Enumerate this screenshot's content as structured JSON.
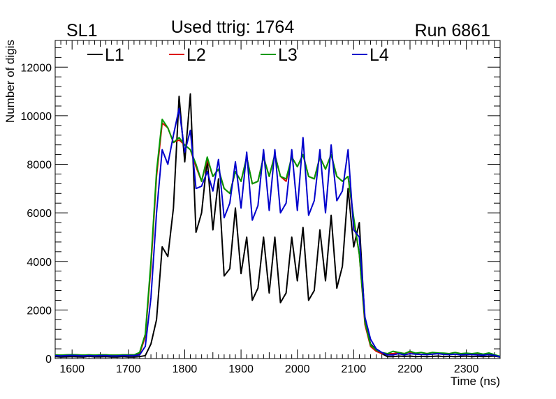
{
  "chart_data": {
    "type": "line",
    "title": "Used ttrig: 1764",
    "title_left": "SL1",
    "title_right": "Run 6861",
    "xlabel": "Time (ns)",
    "ylabel": "Number of digis",
    "xlim": [
      1570,
      2360
    ],
    "ylim": [
      0,
      13100
    ],
    "xticks": [
      1600,
      1700,
      1800,
      1900,
      2000,
      2100,
      2200,
      2300
    ],
    "yticks": [
      0,
      2000,
      4000,
      6000,
      8000,
      10000,
      12000
    ],
    "legend_position": "top",
    "x": [
      1570,
      1580,
      1590,
      1600,
      1610,
      1620,
      1630,
      1640,
      1650,
      1660,
      1670,
      1680,
      1690,
      1700,
      1710,
      1720,
      1730,
      1740,
      1750,
      1760,
      1770,
      1780,
      1790,
      1800,
      1810,
      1820,
      1830,
      1840,
      1850,
      1860,
      1870,
      1880,
      1890,
      1900,
      1910,
      1920,
      1930,
      1940,
      1950,
      1960,
      1970,
      1980,
      1990,
      2000,
      2010,
      2020,
      2030,
      2040,
      2050,
      2060,
      2070,
      2080,
      2090,
      2100,
      2110,
      2120,
      2130,
      2140,
      2150,
      2160,
      2170,
      2180,
      2190,
      2200,
      2210,
      2220,
      2230,
      2240,
      2250,
      2260,
      2270,
      2280,
      2290,
      2300,
      2310,
      2320,
      2330,
      2340,
      2350,
      2360
    ],
    "series": [
      {
        "name": "L1",
        "color": "#000000",
        "values": [
          80,
          60,
          70,
          80,
          70,
          60,
          90,
          70,
          70,
          80,
          60,
          60,
          80,
          60,
          60,
          80,
          120,
          600,
          1600,
          4600,
          4200,
          6200,
          10800,
          8100,
          10900,
          5200,
          6000,
          8200,
          5300,
          7400,
          3400,
          3700,
          6200,
          3500,
          5000,
          2400,
          2900,
          5000,
          2700,
          5000,
          2300,
          2700,
          5000,
          3200,
          5400,
          2400,
          2800,
          5300,
          3200,
          5900,
          2900,
          3800,
          7000,
          4600,
          5600,
          1500,
          600,
          350,
          200,
          80,
          80,
          100,
          90,
          100,
          80,
          90,
          80,
          90,
          100,
          80,
          90,
          80,
          90,
          100,
          80,
          90,
          80,
          90,
          100,
          60
        ]
      },
      {
        "name": "L2",
        "color": "#dd0000",
        "values": [
          150,
          140,
          150,
          160,
          150,
          140,
          150,
          140,
          150,
          150,
          140,
          140,
          150,
          150,
          150,
          200,
          900,
          3800,
          7500,
          9700,
          9500,
          8900,
          9000,
          8800,
          8600,
          7900,
          7300,
          8200,
          7500,
          7800,
          7000,
          6800,
          7700,
          7300,
          8300,
          7200,
          7300,
          8300,
          7500,
          8400,
          7500,
          7300,
          8300,
          7900,
          8400,
          7500,
          7400,
          8300,
          7800,
          8400,
          7500,
          7300,
          7500,
          5700,
          4300,
          1400,
          500,
          300,
          200,
          200,
          200,
          250,
          200,
          280,
          200,
          250,
          200,
          250,
          200,
          200,
          200,
          250,
          200,
          200,
          200,
          200,
          150,
          200,
          150,
          80
        ]
      },
      {
        "name": "L3",
        "color": "#009900",
        "values": [
          150,
          140,
          150,
          160,
          150,
          140,
          150,
          140,
          150,
          150,
          140,
          140,
          150,
          150,
          150,
          250,
          1000,
          4000,
          7700,
          9850,
          9500,
          8900,
          9100,
          8800,
          8600,
          8000,
          7300,
          8300,
          7500,
          7800,
          7000,
          6800,
          7700,
          7300,
          8300,
          7200,
          7300,
          8300,
          7500,
          8400,
          7500,
          7400,
          8300,
          7900,
          8400,
          7500,
          7400,
          8300,
          7800,
          8400,
          7500,
          7300,
          7500,
          5800,
          4300,
          1500,
          550,
          350,
          250,
          200,
          300,
          250,
          200,
          300,
          220,
          250,
          200,
          250,
          230,
          220,
          200,
          250,
          200,
          220,
          200,
          230,
          180,
          230,
          160,
          90
        ]
      },
      {
        "name": "L4",
        "color": "#0000cc",
        "values": [
          120,
          110,
          120,
          130,
          120,
          110,
          120,
          110,
          120,
          120,
          110,
          110,
          120,
          120,
          120,
          150,
          500,
          2500,
          6000,
          8600,
          8000,
          9200,
          10300,
          8500,
          9400,
          7000,
          7100,
          7700,
          6900,
          8200,
          5800,
          6400,
          8100,
          6200,
          8500,
          5700,
          6300,
          8600,
          6100,
          8600,
          6000,
          6400,
          8600,
          6100,
          9100,
          5900,
          6500,
          8600,
          6000,
          8800,
          6500,
          6900,
          8600,
          5300,
          5000,
          1700,
          800,
          400,
          250,
          150,
          150,
          200,
          150,
          200,
          180,
          170,
          160,
          180,
          200,
          170,
          160,
          180,
          150,
          170,
          160,
          150,
          140,
          160,
          130,
          70
        ]
      }
    ]
  }
}
